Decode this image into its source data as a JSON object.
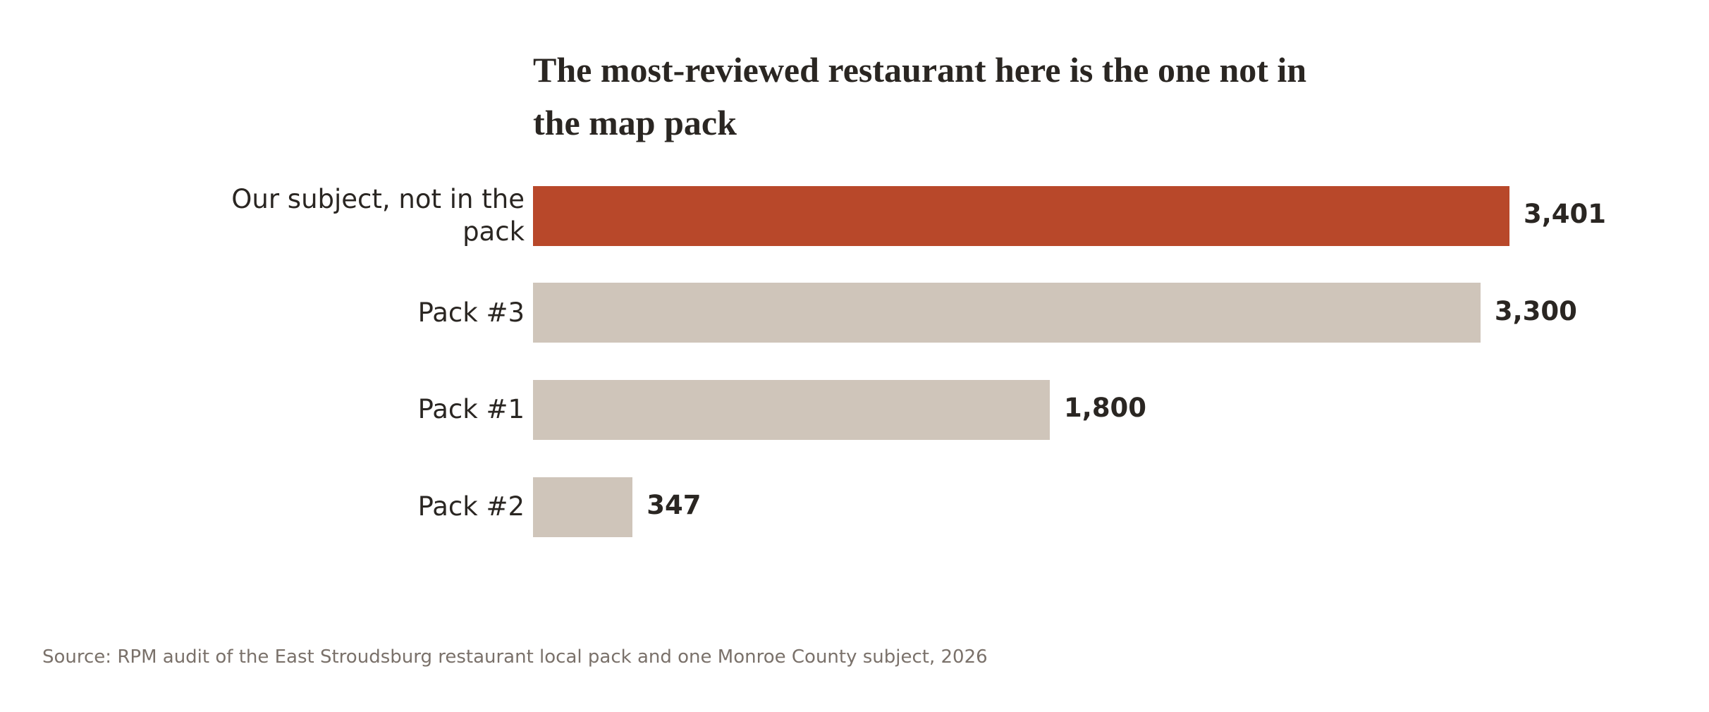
{
  "chart_data": {
    "type": "barh",
    "title": "The most-reviewed restaurant here is the one not in the map pack",
    "categories": [
      "Our subject, not in the pack",
      "Pack #3",
      "Pack #1",
      "Pack #2"
    ],
    "values": [
      3401,
      3300,
      1800,
      347
    ],
    "value_labels": [
      "3,401",
      "3,300",
      "1,800",
      "347"
    ],
    "colors": [
      "#b8482a",
      "#cfc5ba",
      "#cfc5ba",
      "#cfc5ba"
    ],
    "source": "Source: RPM audit of the East Stroudsburg restaurant local pack and one Monroe County subject, 2026"
  }
}
